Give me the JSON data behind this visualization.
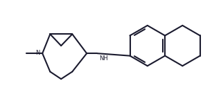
{
  "line_color": "#1a1a2e",
  "line_width": 1.5,
  "bg_color": "#ffffff",
  "figsize": [
    3.06,
    1.46
  ],
  "dpi": 100,
  "xlim": [
    -0.5,
    10.5
  ],
  "ylim": [
    0,
    5
  ]
}
